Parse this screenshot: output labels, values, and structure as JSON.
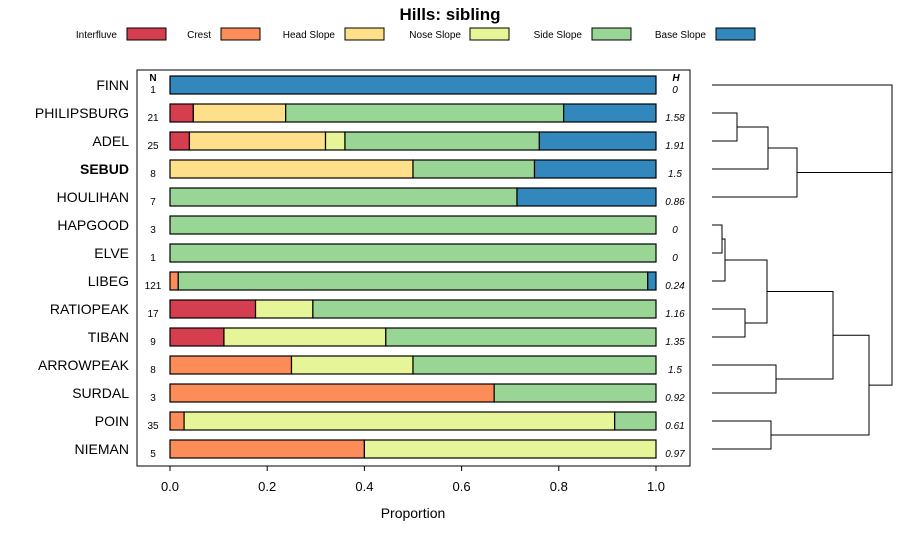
{
  "chart_data": {
    "type": "bar",
    "orientation": "horizontal",
    "stacked": true,
    "title": "Hills: sibling",
    "xlabel": "Proportion",
    "xlim": [
      0,
      1
    ],
    "xticks": [
      "0.0",
      "0.2",
      "0.4",
      "0.6",
      "0.8",
      "1.0"
    ],
    "n_header": "N",
    "h_header": "H",
    "legend": [
      {
        "name": "Interfluve",
        "color": "#D53E4F"
      },
      {
        "name": "Crest",
        "color": "#FC8D59"
      },
      {
        "name": "Head Slope",
        "color": "#FEE08B"
      },
      {
        "name": "Nose Slope",
        "color": "#E6F598"
      },
      {
        "name": "Side Slope",
        "color": "#99D594"
      },
      {
        "name": "Base Slope",
        "color": "#3288BD"
      }
    ],
    "rows": [
      {
        "label": "FINN",
        "n": "1",
        "h": "0",
        "bold": false,
        "values": [
          0,
          0,
          0,
          0,
          0,
          1.0
        ]
      },
      {
        "label": "PHILIPSBURG",
        "n": "21",
        "h": "1.58",
        "bold": false,
        "values": [
          0.048,
          0,
          0.19,
          0,
          0.572,
          0.19
        ]
      },
      {
        "label": "ADEL",
        "n": "25",
        "h": "1.91",
        "bold": false,
        "values": [
          0.04,
          0,
          0.28,
          0.04,
          0.4,
          0.24
        ]
      },
      {
        "label": "SEBUD",
        "n": "8",
        "h": "1.5",
        "bold": true,
        "values": [
          0,
          0,
          0.5,
          0,
          0.25,
          0.25
        ]
      },
      {
        "label": "HOULIHAN",
        "n": "7",
        "h": "0.86",
        "bold": false,
        "values": [
          0,
          0,
          0,
          0,
          0.714,
          0.286
        ]
      },
      {
        "label": "HAPGOOD",
        "n": "3",
        "h": "0",
        "bold": false,
        "values": [
          0,
          0,
          0,
          0,
          1.0,
          0
        ]
      },
      {
        "label": "ELVE",
        "n": "1",
        "h": "0",
        "bold": false,
        "values": [
          0,
          0,
          0,
          0,
          1.0,
          0
        ]
      },
      {
        "label": "LIBEG",
        "n": "121",
        "h": "0.24",
        "bold": false,
        "values": [
          0,
          0.017,
          0,
          0,
          0.966,
          0.017
        ]
      },
      {
        "label": "RATIOPEAK",
        "n": "17",
        "h": "1.16",
        "bold": false,
        "values": [
          0.176,
          0,
          0,
          0.118,
          0.706,
          0
        ]
      },
      {
        "label": "TIBAN",
        "n": "9",
        "h": "1.35",
        "bold": false,
        "values": [
          0.111,
          0,
          0,
          0.333,
          0.556,
          0
        ]
      },
      {
        "label": "ARROWPEAK",
        "n": "8",
        "h": "1.5",
        "bold": false,
        "values": [
          0,
          0.25,
          0,
          0.25,
          0.5,
          0
        ]
      },
      {
        "label": "SURDAL",
        "n": "3",
        "h": "0.92",
        "bold": false,
        "values": [
          0,
          0.667,
          0,
          0,
          0.333,
          0
        ]
      },
      {
        "label": "POIN",
        "n": "35",
        "h": "0.61",
        "bold": false,
        "values": [
          0,
          0.029,
          0,
          0.886,
          0.085,
          0
        ]
      },
      {
        "label": "NIEMAN",
        "n": "5",
        "h": "0.97",
        "bold": false,
        "values": [
          0,
          0.4,
          0,
          0.6,
          0,
          0
        ]
      }
    ]
  }
}
